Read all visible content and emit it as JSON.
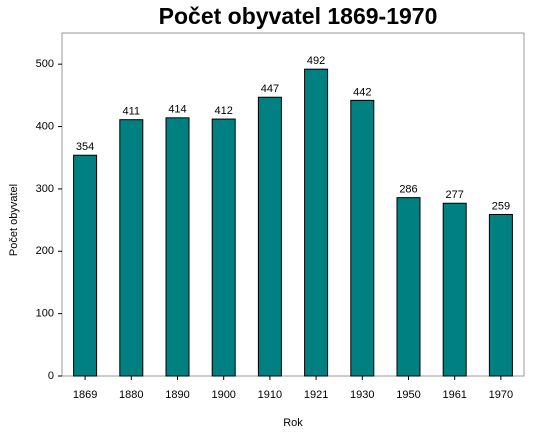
{
  "chart_data": {
    "type": "bar",
    "title": "Počet obyvatel 1869-1970",
    "x_label": "Rok",
    "y_label": "Počet obyvatel",
    "categories": [
      "1869",
      "1880",
      "1890",
      "1900",
      "1910",
      "1921",
      "1930",
      "1950",
      "1961",
      "1970"
    ],
    "values": [
      354,
      411,
      414,
      412,
      447,
      492,
      442,
      286,
      277,
      259
    ],
    "color": "#008080",
    "ylim": [
      0,
      550
    ],
    "yticks": [
      0,
      100,
      200,
      300,
      400,
      500
    ],
    "grid": false
  }
}
